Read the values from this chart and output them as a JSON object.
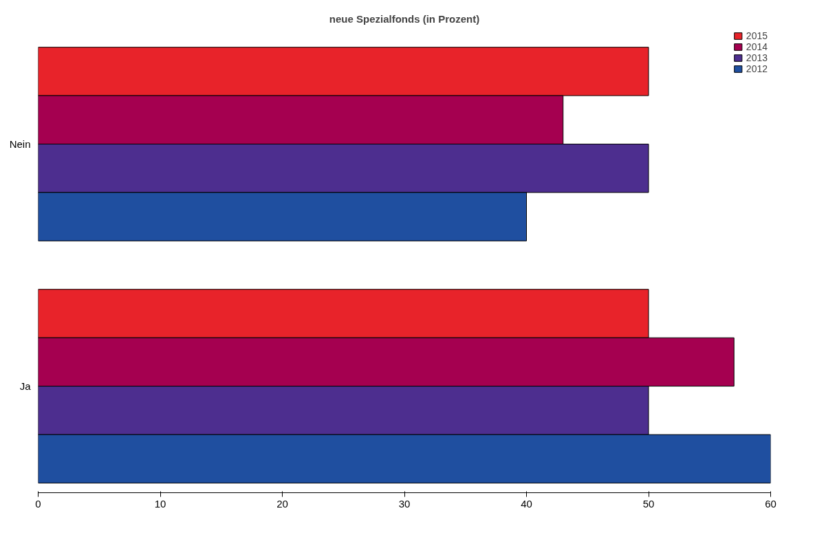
{
  "chart_data": {
    "type": "bar",
    "orientation": "horizontal",
    "title": "neue Spezialfonds (in Prozent)",
    "categories": [
      "Nein",
      "Ja"
    ],
    "series": [
      {
        "name": "2015",
        "color": "#e8232a",
        "values": [
          50,
          50
        ]
      },
      {
        "name": "2014",
        "color": "#a50050",
        "values": [
          43,
          57
        ]
      },
      {
        "name": "2013",
        "color": "#4d2e8f",
        "values": [
          50,
          50
        ]
      },
      {
        "name": "2012",
        "color": "#1f4fa0",
        "values": [
          40,
          60
        ]
      }
    ],
    "xlim": [
      0,
      60
    ],
    "xticks": [
      0,
      10,
      20,
      30,
      40,
      50,
      60
    ],
    "grid": false,
    "legend": "top right"
  }
}
